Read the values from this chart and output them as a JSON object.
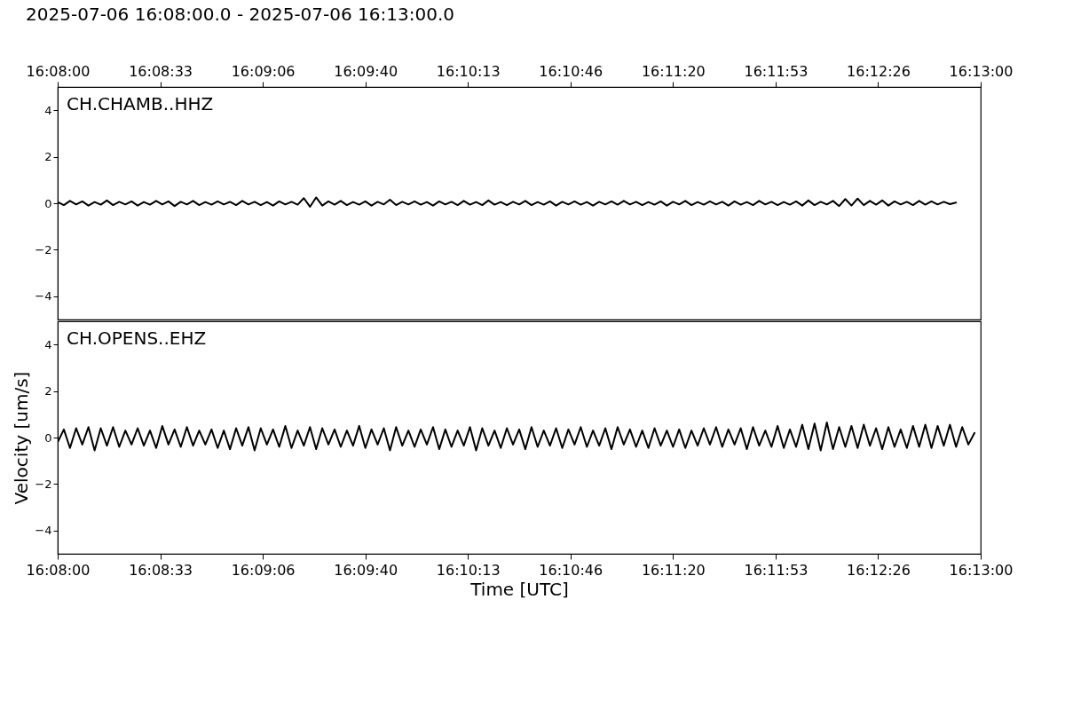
{
  "chart_data": [
    {
      "type": "line",
      "title": "2025-07-06 16:08:00.0 - 2025-07-06 16:13:00.0",
      "xlim": [
        "2025-07-06T16:08:00",
        "2025-07-06T16:13:00"
      ],
      "x2lim": [
        "2025-07-06T16:08:00",
        "2025-07-06T16:13:00"
      ],
      "x2ticks": [
        {
          "value": "2025-07-06T16:08:00",
          "label": "16:08:00"
        },
        {
          "value": "2025-07-06T16:08:33.333",
          "label": "16:08:33"
        },
        {
          "value": "2025-07-06T16:09:06.667",
          "label": "16:09:06"
        },
        {
          "value": "2025-07-06T16:09:40",
          "label": "16:09:40"
        },
        {
          "value": "2025-07-06T16:10:13.333",
          "label": "16:10:13"
        },
        {
          "value": "2025-07-06T16:10:46.667",
          "label": "16:10:46"
        },
        {
          "value": "2025-07-06T16:11:20",
          "label": "16:11:20"
        },
        {
          "value": "2025-07-06T16:11:53.333",
          "label": "16:11:53"
        },
        {
          "value": "2025-07-06T16:12:26.667",
          "label": "16:12:26"
        },
        {
          "value": "2025-07-06T16:13:00",
          "label": "16:13:00"
        }
      ],
      "ylim": [
        -5,
        5
      ],
      "yticks": [
        -4,
        -2,
        0,
        2,
        4
      ],
      "x": [
        "2025-07-06T16:08:00",
        "2025-07-06T16:08:02",
        "2025-07-06T16:08:04",
        "2025-07-06T16:08:06",
        "2025-07-06T16:08:08",
        "2025-07-06T16:08:10",
        "2025-07-06T16:08:12",
        "2025-07-06T16:08:14",
        "2025-07-06T16:08:16",
        "2025-07-06T16:08:18",
        "2025-07-06T16:08:20",
        "2025-07-06T16:08:22",
        "2025-07-06T16:08:24",
        "2025-07-06T16:08:26",
        "2025-07-06T16:08:28",
        "2025-07-06T16:08:30",
        "2025-07-06T16:08:32",
        "2025-07-06T16:08:34",
        "2025-07-06T16:08:36",
        "2025-07-06T16:08:38",
        "2025-07-06T16:08:40",
        "2025-07-06T16:08:42",
        "2025-07-06T16:08:44",
        "2025-07-06T16:08:46",
        "2025-07-06T16:08:48",
        "2025-07-06T16:08:50",
        "2025-07-06T16:08:52",
        "2025-07-06T16:08:54",
        "2025-07-06T16:08:56",
        "2025-07-06T16:08:58",
        "2025-07-06T16:09:00",
        "2025-07-06T16:09:02",
        "2025-07-06T16:09:04",
        "2025-07-06T16:09:06",
        "2025-07-06T16:09:08",
        "2025-07-06T16:09:10",
        "2025-07-06T16:09:12",
        "2025-07-06T16:09:14",
        "2025-07-06T16:09:16",
        "2025-07-06T16:09:18",
        "2025-07-06T16:09:20",
        "2025-07-06T16:09:22",
        "2025-07-06T16:09:24",
        "2025-07-06T16:09:26",
        "2025-07-06T16:09:28",
        "2025-07-06T16:09:30",
        "2025-07-06T16:09:32",
        "2025-07-06T16:09:34",
        "2025-07-06T16:09:36",
        "2025-07-06T16:09:38",
        "2025-07-06T16:09:40",
        "2025-07-06T16:09:42",
        "2025-07-06T16:09:44",
        "2025-07-06T16:09:46",
        "2025-07-06T16:09:48",
        "2025-07-06T16:09:50",
        "2025-07-06T16:09:52",
        "2025-07-06T16:09:54",
        "2025-07-06T16:09:56",
        "2025-07-06T16:09:58",
        "2025-07-06T16:10:00",
        "2025-07-06T16:10:02",
        "2025-07-06T16:10:04",
        "2025-07-06T16:10:06",
        "2025-07-06T16:10:08",
        "2025-07-06T16:10:10",
        "2025-07-06T16:10:12",
        "2025-07-06T16:10:14",
        "2025-07-06T16:10:16",
        "2025-07-06T16:10:18",
        "2025-07-06T16:10:20",
        "2025-07-06T16:10:22",
        "2025-07-06T16:10:24",
        "2025-07-06T16:10:26",
        "2025-07-06T16:10:28",
        "2025-07-06T16:10:30",
        "2025-07-06T16:10:32",
        "2025-07-06T16:10:34",
        "2025-07-06T16:10:36",
        "2025-07-06T16:10:38",
        "2025-07-06T16:10:40",
        "2025-07-06T16:10:42",
        "2025-07-06T16:10:44",
        "2025-07-06T16:10:46",
        "2025-07-06T16:10:48",
        "2025-07-06T16:10:50",
        "2025-07-06T16:10:52",
        "2025-07-06T16:10:54",
        "2025-07-06T16:10:56",
        "2025-07-06T16:10:58",
        "2025-07-06T16:11:00",
        "2025-07-06T16:11:02",
        "2025-07-06T16:11:04",
        "2025-07-06T16:11:06",
        "2025-07-06T16:11:08",
        "2025-07-06T16:11:10",
        "2025-07-06T16:11:12",
        "2025-07-06T16:11:14",
        "2025-07-06T16:11:16",
        "2025-07-06T16:11:18",
        "2025-07-06T16:11:20",
        "2025-07-06T16:11:22",
        "2025-07-06T16:11:24",
        "2025-07-06T16:11:26",
        "2025-07-06T16:11:28",
        "2025-07-06T16:11:30",
        "2025-07-06T16:11:32",
        "2025-07-06T16:11:34",
        "2025-07-06T16:11:36",
        "2025-07-06T16:11:38",
        "2025-07-06T16:11:40",
        "2025-07-06T16:11:42",
        "2025-07-06T16:11:44",
        "2025-07-06T16:11:46",
        "2025-07-06T16:11:48",
        "2025-07-06T16:11:50",
        "2025-07-06T16:11:52",
        "2025-07-06T16:11:54",
        "2025-07-06T16:11:56",
        "2025-07-06T16:11:58",
        "2025-07-06T16:12:00",
        "2025-07-06T16:12:02",
        "2025-07-06T16:12:04",
        "2025-07-06T16:12:06",
        "2025-07-06T16:12:08",
        "2025-07-06T16:12:10",
        "2025-07-06T16:12:12",
        "2025-07-06T16:12:14",
        "2025-07-06T16:12:16",
        "2025-07-06T16:12:18",
        "2025-07-06T16:12:20",
        "2025-07-06T16:12:22",
        "2025-07-06T16:12:24",
        "2025-07-06T16:12:26",
        "2025-07-06T16:12:28",
        "2025-07-06T16:12:30",
        "2025-07-06T16:12:32",
        "2025-07-06T16:12:34",
        "2025-07-06T16:12:36",
        "2025-07-06T16:12:38",
        "2025-07-06T16:12:40",
        "2025-07-06T16:12:42",
        "2025-07-06T16:12:44",
        "2025-07-06T16:12:46",
        "2025-07-06T16:12:48",
        "2025-07-06T16:12:50",
        "2025-07-06T16:12:52"
      ],
      "series": [
        {
          "name": "CH.CHAMB..HHZ",
          "color": "#000000",
          "values": [
            0.05,
            -0.08,
            0.1,
            -0.05,
            0.08,
            -0.1,
            0.05,
            -0.06,
            0.12,
            -0.08,
            0.06,
            -0.05,
            0.08,
            -0.1,
            0.05,
            -0.06,
            0.1,
            -0.05,
            0.08,
            -0.12,
            0.06,
            -0.05,
            0.1,
            -0.08,
            0.05,
            -0.06,
            0.08,
            -0.05,
            0.06,
            -0.08,
            0.1,
            -0.05,
            0.06,
            -0.08,
            0.05,
            -0.1,
            0.08,
            -0.05,
            0.06,
            -0.06,
            0.22,
            -0.15,
            0.25,
            -0.1,
            0.08,
            -0.06,
            0.1,
            -0.08,
            0.05,
            -0.06,
            0.08,
            -0.1,
            0.06,
            -0.05,
            0.15,
            -0.08,
            0.06,
            -0.05,
            0.08,
            -0.06,
            0.05,
            -0.1,
            0.08,
            -0.05,
            0.06,
            -0.08,
            0.1,
            -0.06,
            0.05,
            -0.08,
            0.12,
            -0.06,
            0.05,
            -0.08,
            0.06,
            -0.05,
            0.1,
            -0.08,
            0.05,
            -0.06,
            0.08,
            -0.1,
            0.06,
            -0.05,
            0.08,
            -0.06,
            0.05,
            -0.1,
            0.06,
            -0.05,
            0.08,
            -0.06,
            0.1,
            -0.05,
            0.06,
            -0.08,
            0.05,
            -0.06,
            0.08,
            -0.1,
            0.06,
            -0.05,
            0.1,
            -0.08,
            0.05,
            -0.06,
            0.08,
            -0.05,
            0.06,
            -0.1,
            0.08,
            -0.06,
            0.05,
            -0.08,
            0.1,
            -0.05,
            0.06,
            -0.08,
            0.05,
            -0.06,
            0.08,
            -0.1,
            0.12,
            -0.08,
            0.06,
            -0.05,
            0.1,
            -0.12,
            0.18,
            -0.1,
            0.2,
            -0.08,
            0.1,
            -0.06,
            0.12,
            -0.1,
            0.08,
            -0.05,
            0.06,
            -0.08,
            0.1,
            -0.06,
            0.08,
            -0.05,
            0.06,
            -0.04,
            0.03
          ]
        }
      ]
    },
    {
      "type": "line",
      "xlabel": "Time [UTC]",
      "ylabel": "Velocity [um/s]",
      "xlim": [
        "2025-07-06T16:08:00",
        "2025-07-06T16:13:00"
      ],
      "xticks": [
        {
          "value": "2025-07-06T16:08:00",
          "label": "16:08:00"
        },
        {
          "value": "2025-07-06T16:08:33.333",
          "label": "16:08:33"
        },
        {
          "value": "2025-07-06T16:09:06.667",
          "label": "16:09:06"
        },
        {
          "value": "2025-07-06T16:09:40",
          "label": "16:09:40"
        },
        {
          "value": "2025-07-06T16:10:13.333",
          "label": "16:10:13"
        },
        {
          "value": "2025-07-06T16:10:46.667",
          "label": "16:10:46"
        },
        {
          "value": "2025-07-06T16:11:20",
          "label": "16:11:20"
        },
        {
          "value": "2025-07-06T16:11:53.333",
          "label": "16:11:53"
        },
        {
          "value": "2025-07-06T16:12:26.667",
          "label": "16:12:26"
        },
        {
          "value": "2025-07-06T16:13:00",
          "label": "16:13:00"
        }
      ],
      "ylim": [
        -5,
        5
      ],
      "yticks": [
        -4,
        -2,
        0,
        2,
        4
      ],
      "x": [
        "2025-07-06T16:08:00",
        "2025-07-06T16:08:02",
        "2025-07-06T16:08:04",
        "2025-07-06T16:08:06",
        "2025-07-06T16:08:08",
        "2025-07-06T16:08:10",
        "2025-07-06T16:08:12",
        "2025-07-06T16:08:14",
        "2025-07-06T16:08:16",
        "2025-07-06T16:08:18",
        "2025-07-06T16:08:20",
        "2025-07-06T16:08:22",
        "2025-07-06T16:08:24",
        "2025-07-06T16:08:26",
        "2025-07-06T16:08:28",
        "2025-07-06T16:08:30",
        "2025-07-06T16:08:32",
        "2025-07-06T16:08:34",
        "2025-07-06T16:08:36",
        "2025-07-06T16:08:38",
        "2025-07-06T16:08:40",
        "2025-07-06T16:08:42",
        "2025-07-06T16:08:44",
        "2025-07-06T16:08:46",
        "2025-07-06T16:08:48",
        "2025-07-06T16:08:50",
        "2025-07-06T16:08:52",
        "2025-07-06T16:08:54",
        "2025-07-06T16:08:56",
        "2025-07-06T16:08:58",
        "2025-07-06T16:09:00",
        "2025-07-06T16:09:02",
        "2025-07-06T16:09:04",
        "2025-07-06T16:09:06",
        "2025-07-06T16:09:08",
        "2025-07-06T16:09:10",
        "2025-07-06T16:09:12",
        "2025-07-06T16:09:14",
        "2025-07-06T16:09:16",
        "2025-07-06T16:09:18",
        "2025-07-06T16:09:20",
        "2025-07-06T16:09:22",
        "2025-07-06T16:09:24",
        "2025-07-06T16:09:26",
        "2025-07-06T16:09:28",
        "2025-07-06T16:09:30",
        "2025-07-06T16:09:32",
        "2025-07-06T16:09:34",
        "2025-07-06T16:09:36",
        "2025-07-06T16:09:38",
        "2025-07-06T16:09:40",
        "2025-07-06T16:09:42",
        "2025-07-06T16:09:44",
        "2025-07-06T16:09:46",
        "2025-07-06T16:09:48",
        "2025-07-06T16:09:50",
        "2025-07-06T16:09:52",
        "2025-07-06T16:09:54",
        "2025-07-06T16:09:56",
        "2025-07-06T16:09:58",
        "2025-07-06T16:10:00",
        "2025-07-06T16:10:02",
        "2025-07-06T16:10:04",
        "2025-07-06T16:10:06",
        "2025-07-06T16:10:08",
        "2025-07-06T16:10:10",
        "2025-07-06T16:10:12",
        "2025-07-06T16:10:14",
        "2025-07-06T16:10:16",
        "2025-07-06T16:10:18",
        "2025-07-06T16:10:20",
        "2025-07-06T16:10:22",
        "2025-07-06T16:10:24",
        "2025-07-06T16:10:26",
        "2025-07-06T16:10:28",
        "2025-07-06T16:10:30",
        "2025-07-06T16:10:32",
        "2025-07-06T16:10:34",
        "2025-07-06T16:10:36",
        "2025-07-06T16:10:38",
        "2025-07-06T16:10:40",
        "2025-07-06T16:10:42",
        "2025-07-06T16:10:44",
        "2025-07-06T16:10:46",
        "2025-07-06T16:10:48",
        "2025-07-06T16:10:50",
        "2025-07-06T16:10:52",
        "2025-07-06T16:10:54",
        "2025-07-06T16:10:56",
        "2025-07-06T16:10:58",
        "2025-07-06T16:11:00",
        "2025-07-06T16:11:02",
        "2025-07-06T16:11:04",
        "2025-07-06T16:11:06",
        "2025-07-06T16:11:08",
        "2025-07-06T16:11:10",
        "2025-07-06T16:11:12",
        "2025-07-06T16:11:14",
        "2025-07-06T16:11:16",
        "2025-07-06T16:11:18",
        "2025-07-06T16:11:20",
        "2025-07-06T16:11:22",
        "2025-07-06T16:11:24",
        "2025-07-06T16:11:26",
        "2025-07-06T16:11:28",
        "2025-07-06T16:11:30",
        "2025-07-06T16:11:32",
        "2025-07-06T16:11:34",
        "2025-07-06T16:11:36",
        "2025-07-06T16:11:38",
        "2025-07-06T16:11:40",
        "2025-07-06T16:11:42",
        "2025-07-06T16:11:44",
        "2025-07-06T16:11:46",
        "2025-07-06T16:11:48",
        "2025-07-06T16:11:50",
        "2025-07-06T16:11:52",
        "2025-07-06T16:11:54",
        "2025-07-06T16:11:56",
        "2025-07-06T16:11:58",
        "2025-07-06T16:12:00",
        "2025-07-06T16:12:02",
        "2025-07-06T16:12:04",
        "2025-07-06T16:12:06",
        "2025-07-06T16:12:08",
        "2025-07-06T16:12:10",
        "2025-07-06T16:12:12",
        "2025-07-06T16:12:14",
        "2025-07-06T16:12:16",
        "2025-07-06T16:12:18",
        "2025-07-06T16:12:20",
        "2025-07-06T16:12:22",
        "2025-07-06T16:12:24",
        "2025-07-06T16:12:26",
        "2025-07-06T16:12:28",
        "2025-07-06T16:12:30",
        "2025-07-06T16:12:32",
        "2025-07-06T16:12:34",
        "2025-07-06T16:12:36",
        "2025-07-06T16:12:38",
        "2025-07-06T16:12:40",
        "2025-07-06T16:12:42",
        "2025-07-06T16:12:44",
        "2025-07-06T16:12:46",
        "2025-07-06T16:12:48",
        "2025-07-06T16:12:50",
        "2025-07-06T16:12:52",
        "2025-07-06T16:12:54",
        "2025-07-06T16:12:56",
        "2025-07-06T16:12:58"
      ],
      "series": [
        {
          "name": "CH.OPENS..EHZ",
          "color": "#000000",
          "values": [
            -0.2,
            0.35,
            -0.45,
            0.4,
            -0.3,
            0.45,
            -0.55,
            0.4,
            -0.35,
            0.45,
            -0.4,
            0.3,
            -0.3,
            0.4,
            -0.35,
            0.3,
            -0.45,
            0.5,
            -0.3,
            0.35,
            -0.4,
            0.45,
            -0.35,
            0.3,
            -0.3,
            0.35,
            -0.45,
            0.3,
            -0.5,
            0.4,
            -0.35,
            0.45,
            -0.55,
            0.4,
            -0.3,
            0.35,
            -0.4,
            0.5,
            -0.45,
            0.3,
            -0.35,
            0.45,
            -0.5,
            0.4,
            -0.3,
            0.35,
            -0.4,
            0.3,
            -0.35,
            0.5,
            -0.45,
            0.35,
            -0.3,
            0.4,
            -0.55,
            0.45,
            -0.35,
            0.3,
            -0.4,
            0.35,
            -0.3,
            0.45,
            -0.5,
            0.35,
            -0.4,
            0.3,
            -0.35,
            0.45,
            -0.55,
            0.4,
            -0.35,
            0.3,
            -0.45,
            0.4,
            -0.3,
            0.35,
            -0.5,
            0.45,
            -0.4,
            0.3,
            -0.35,
            0.4,
            -0.45,
            0.35,
            -0.3,
            0.45,
            -0.4,
            0.3,
            -0.35,
            0.4,
            -0.5,
            0.45,
            -0.3,
            0.35,
            -0.4,
            0.3,
            -0.45,
            0.4,
            -0.35,
            0.3,
            -0.4,
            0.35,
            -0.45,
            0.3,
            -0.35,
            0.4,
            -0.3,
            0.45,
            -0.4,
            0.35,
            -0.3,
            0.4,
            -0.5,
            0.45,
            -0.35,
            0.3,
            -0.4,
            0.5,
            -0.45,
            0.35,
            -0.4,
            0.55,
            -0.5,
            0.6,
            -0.55,
            0.65,
            -0.5,
            0.45,
            -0.4,
            0.5,
            -0.45,
            0.55,
            -0.35,
            0.4,
            -0.5,
            0.45,
            -0.4,
            0.35,
            -0.45,
            0.5,
            -0.4,
            0.55,
            -0.45,
            0.5,
            -0.35,
            0.55,
            -0.4,
            0.45,
            -0.3,
            0.2
          ]
        }
      ]
    }
  ]
}
